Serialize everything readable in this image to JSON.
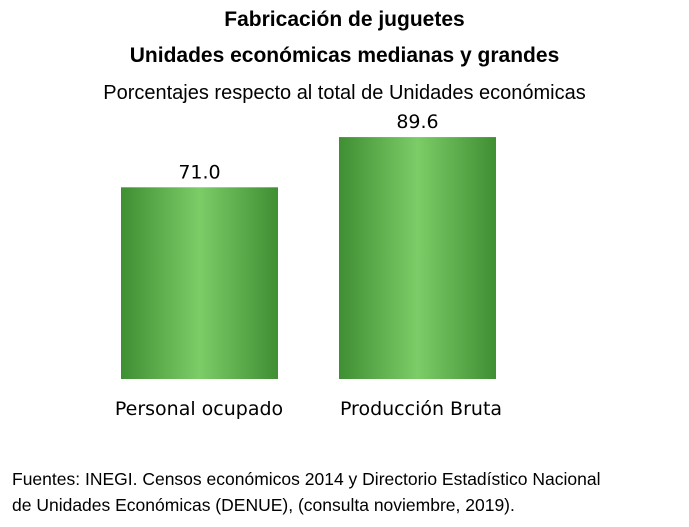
{
  "chart_data": {
    "type": "bar",
    "title": "Fabricación de juguetes",
    "subtitle_1": "Unidades económicas medianas y grandes",
    "subtitle_2": "Porcentajes respecto al total de Unidades económicas",
    "categories": [
      "Personal ocupado",
      "Producción Bruta"
    ],
    "values": [
      71.0,
      89.6
    ],
    "value_labels": [
      "71.0",
      "89.6"
    ],
    "ylim": [
      0,
      100
    ],
    "grid": false,
    "legend": "none",
    "bar_color": "#5eb14d",
    "bar_highlight": "#7ccc68",
    "bar_shade": "#3f8f33"
  },
  "source": {
    "line_1": "Fuentes: INEGI. Censos económicos 2014 y Directorio Estadístico Nacional",
    "line_2": "de Unidades Económicas (DENUE), (consulta noviembre, 2019)."
  }
}
